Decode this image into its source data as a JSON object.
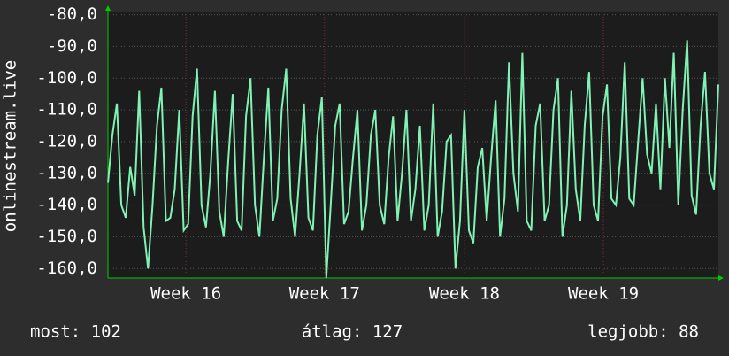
{
  "chart_data": {
    "type": "line",
    "y_label": "onlinestream.live",
    "x": [
      0,
      1,
      2,
      3,
      4,
      5,
      6,
      7,
      8,
      9,
      10,
      11,
      12,
      13,
      14,
      15,
      16,
      17,
      18,
      19,
      20,
      21,
      22,
      23,
      24,
      25,
      26,
      27,
      28,
      29,
      30,
      31,
      32,
      33,
      34,
      35,
      36,
      37,
      38,
      39,
      40,
      41,
      42,
      43,
      44,
      45,
      46,
      47,
      48,
      49,
      50,
      51,
      52,
      53,
      54,
      55,
      56,
      57,
      58,
      59,
      60,
      61,
      62,
      63,
      64,
      65,
      66,
      67,
      68,
      69,
      70,
      71,
      72,
      73,
      74,
      75,
      76,
      77,
      78,
      79,
      80,
      81,
      82,
      83,
      84,
      85,
      86,
      87,
      88,
      89,
      90,
      91,
      92,
      93,
      94,
      95,
      96,
      97,
      98,
      99,
      100,
      101,
      102,
      103,
      104,
      105,
      106,
      107,
      108,
      109,
      110,
      111,
      112,
      113,
      114,
      115,
      116,
      117,
      118,
      119,
      120,
      121,
      122,
      123,
      124,
      125,
      126,
      127,
      128,
      129,
      130,
      131,
      132,
      133,
      134,
      135,
      136,
      137
    ],
    "series": [
      {
        "color": "#7ff2b4",
        "values": [
          -133,
          -118,
          -108,
          -140,
          -144,
          -128,
          -137,
          -104,
          -147,
          -160,
          -140,
          -115,
          -103,
          -145,
          -144,
          -135,
          -110,
          -148,
          -146,
          -112,
          -97,
          -140,
          -147,
          -130,
          -104,
          -142,
          -150,
          -126,
          -105,
          -145,
          -148,
          -112,
          -100,
          -140,
          -150,
          -125,
          -103,
          -145,
          -138,
          -110,
          -97,
          -138,
          -150,
          -130,
          -108,
          -144,
          -148,
          -118,
          -106,
          -163,
          -140,
          -115,
          -108,
          -146,
          -142,
          -125,
          -110,
          -148,
          -140,
          -118,
          -110,
          -140,
          -146,
          -125,
          -112,
          -145,
          -130,
          -110,
          -145,
          -135,
          -115,
          -148,
          -140,
          -108,
          -150,
          -142,
          -120,
          -118,
          -160,
          -145,
          -110,
          -148,
          -152,
          -128,
          -122,
          -145,
          -125,
          -107,
          -150,
          -138,
          -95,
          -130,
          -142,
          -92,
          -145,
          -148,
          -115,
          -108,
          -145,
          -140,
          -110,
          -100,
          -150,
          -140,
          -104,
          -135,
          -145,
          -115,
          -98,
          -140,
          -145,
          -112,
          -102,
          -138,
          -140,
          -125,
          -95,
          -138,
          -140,
          -120,
          -100,
          -124,
          -130,
          -108,
          -135,
          -100,
          -122,
          -92,
          -140,
          -110,
          -88,
          -137,
          -143,
          -115,
          -98,
          -130,
          -135,
          -102
        ]
      }
    ],
    "xlim": [
      0,
      137
    ],
    "xticks": [
      {
        "value": 17.5,
        "label": "Week 16"
      },
      {
        "value": 48.6,
        "label": "Week 17"
      },
      {
        "value": 80,
        "label": "Week 18"
      },
      {
        "value": 111.2,
        "label": "Week 19"
      }
    ],
    "ylim": [
      -163,
      -79
    ],
    "yticks": [
      {
        "value": -80,
        "label": "-80,0"
      },
      {
        "value": -90,
        "label": "-90,0"
      },
      {
        "value": -100,
        "label": "-100,0"
      },
      {
        "value": -110,
        "label": "-110,0"
      },
      {
        "value": -120,
        "label": "-120,0"
      },
      {
        "value": -130,
        "label": "-130,0"
      },
      {
        "value": -140,
        "label": "-140,0"
      },
      {
        "value": -150,
        "label": "-150,0"
      },
      {
        "value": -160,
        "label": "-160,0"
      }
    ],
    "grid": true,
    "stats": [
      "most: 102",
      "átlag: 127",
      "legjobb: 88"
    ]
  }
}
